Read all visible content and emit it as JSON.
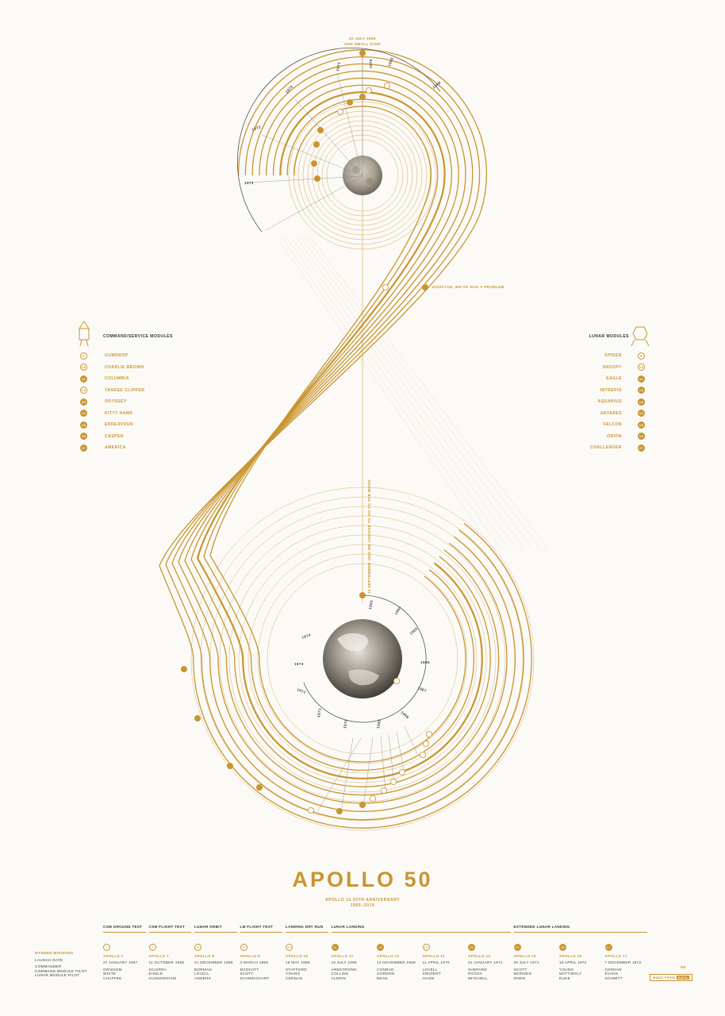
{
  "top_labels": {
    "date": "20 JULY 1969",
    "caption": "ONE SMALL STEP"
  },
  "houston_label": "HOUSTON, WE'VE HAD A PROBLEM",
  "vertical_caption": "12 SEPTEMBER 1962 WE CHOOSE TO GO TO THE MOON",
  "moon_years": [
    "1971",
    "1970",
    "1969",
    "1968",
    "1972",
    "1972",
    "1973"
  ],
  "earth_years_right": [
    "1963",
    "1964",
    "1965",
    "1966",
    "1967",
    "1968"
  ],
  "earth_years_left": [
    "1974",
    "1973",
    "1972",
    "1971",
    "1970",
    "1969"
  ],
  "csm_legend": {
    "title": "COMMAND/SERVICE MODULES",
    "items": [
      {
        "n": "9",
        "name": "GUMDROP"
      },
      {
        "n": "10",
        "name": "CHARLIE BROWN"
      },
      {
        "n": "11",
        "name": "COLUMBIA"
      },
      {
        "n": "12",
        "name": "YANKEE CLIPPER"
      },
      {
        "n": "13",
        "name": "ODYSSEY"
      },
      {
        "n": "14",
        "name": "KITTY HAWK"
      },
      {
        "n": "15",
        "name": "ENDEAVOUR"
      },
      {
        "n": "16",
        "name": "CASPER"
      },
      {
        "n": "17",
        "name": "AMERICA"
      }
    ]
  },
  "lm_legend": {
    "title": "LUNAR MODULES",
    "items": [
      {
        "n": "9",
        "name": "SPIDER"
      },
      {
        "n": "10",
        "name": "SNOOPY"
      },
      {
        "n": "11",
        "name": "EAGLE"
      },
      {
        "n": "12",
        "name": "INTREPID"
      },
      {
        "n": "13",
        "name": "AQUARIUS"
      },
      {
        "n": "14",
        "name": "ANTARES"
      },
      {
        "n": "15",
        "name": "FALCON"
      },
      {
        "n": "16",
        "name": "ORION"
      },
      {
        "n": "17",
        "name": "CHALLENGER"
      }
    ]
  },
  "title": "APOLLO 50",
  "subtitle": "APOLLO 11 50TH ANNIVERSARY",
  "years": "1969–2019",
  "row_labels": {
    "header": "MANNED MISSIONS",
    "launch": "LAUNCH DATE",
    "commander": "COMMANDER",
    "cmp": "COMMAND MODULE PILOT",
    "lmp": "LUNAR MODULE PILOT"
  },
  "phases": {
    "p1": "CSM GROUND TEST",
    "p2": "CSM FLIGHT TEST",
    "p3": "LUNAR ORBIT",
    "p4": "LM FLIGHT TEST",
    "p5": "LANDING DRY RUN",
    "p6": "LUNAR LANDING",
    "p7": "EXTENDED LUNAR LANDING"
  },
  "missions": [
    {
      "n": "1",
      "name": "APOLLO 1",
      "date": "27 JANUARY 1967",
      "crew": [
        "GRISSOM",
        "WHITE",
        "CHAFFEE"
      ]
    },
    {
      "n": "7",
      "name": "APOLLO 7",
      "date": "11 OCTOBER 1968",
      "crew": [
        "SCHIRRA",
        "EISELE",
        "CUNNINGHAM"
      ]
    },
    {
      "n": "8",
      "name": "APOLLO 8",
      "date": "21 DECEMBER 1968",
      "crew": [
        "BORMAN",
        "LOVELL",
        "ANDERS"
      ]
    },
    {
      "n": "9",
      "name": "APOLLO 9",
      "date": "3 MARCH 1969",
      "crew": [
        "MCDIVITT",
        "SCOTT",
        "SCHWEICKART"
      ]
    },
    {
      "n": "10",
      "name": "APOLLO 10",
      "date": "18 MAY 1969",
      "crew": [
        "STAFFORD",
        "YOUNG",
        "CERNAN"
      ]
    },
    {
      "n": "11",
      "name": "APOLLO 11",
      "date": "16 JULY 1969",
      "crew": [
        "ARMSTRONG",
        "COLLINS",
        "ALDRIN"
      ]
    },
    {
      "n": "12",
      "name": "APOLLO 12",
      "date": "14 NOVEMBER 1969",
      "crew": [
        "CONRAD",
        "GORDON",
        "BEAN"
      ]
    },
    {
      "n": "13",
      "name": "APOLLO 13",
      "date": "11 APRIL 1970",
      "crew": [
        "LOVELL",
        "SWIGERT",
        "HAISE"
      ]
    },
    {
      "n": "14",
      "name": "APOLLO 14",
      "date": "31 JANUARY 1971",
      "crew": [
        "SHEPARD",
        "ROOSA",
        "MITCHELL"
      ]
    },
    {
      "n": "15",
      "name": "APOLLO 15",
      "date": "26 JULY 1971",
      "crew": [
        "SCOTT",
        "WORDEN",
        "IRWIN"
      ]
    },
    {
      "n": "16",
      "name": "APOLLO 16",
      "date": "16 APRIL 1972",
      "crew": [
        "YOUNG",
        "MATTINGLY",
        "DUKE"
      ]
    },
    {
      "n": "17",
      "name": "APOLLO 17",
      "date": "7 DECEMBER 1972",
      "crew": [
        "CERNAN",
        "EVANS",
        "SCHMITT"
      ]
    }
  ],
  "made_from": "MADE FROM",
  "made_from_brand": "DATA",
  "edition": "/50",
  "colors": {
    "gold": "#c9952f",
    "dark": "#444444",
    "paper": "#fbfaf7"
  }
}
